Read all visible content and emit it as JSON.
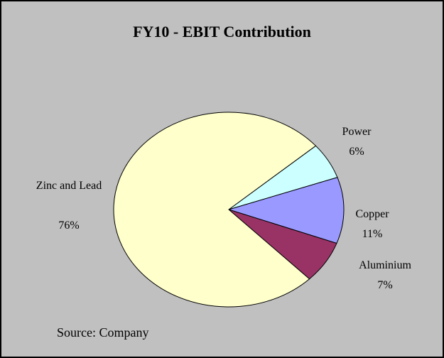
{
  "chart_data": {
    "type": "pie",
    "title": "FY10 - EBIT Contribution",
    "categories": [
      "Power",
      "Copper",
      "Aluminium",
      "Zinc and Lead"
    ],
    "values": [
      6,
      11,
      7,
      76
    ],
    "value_labels": [
      "6%",
      "11%",
      "7%",
      "76%"
    ],
    "colors": [
      "#ccffff",
      "#9999ff",
      "#993366",
      "#ffffcc"
    ],
    "source": "Source: Company"
  }
}
